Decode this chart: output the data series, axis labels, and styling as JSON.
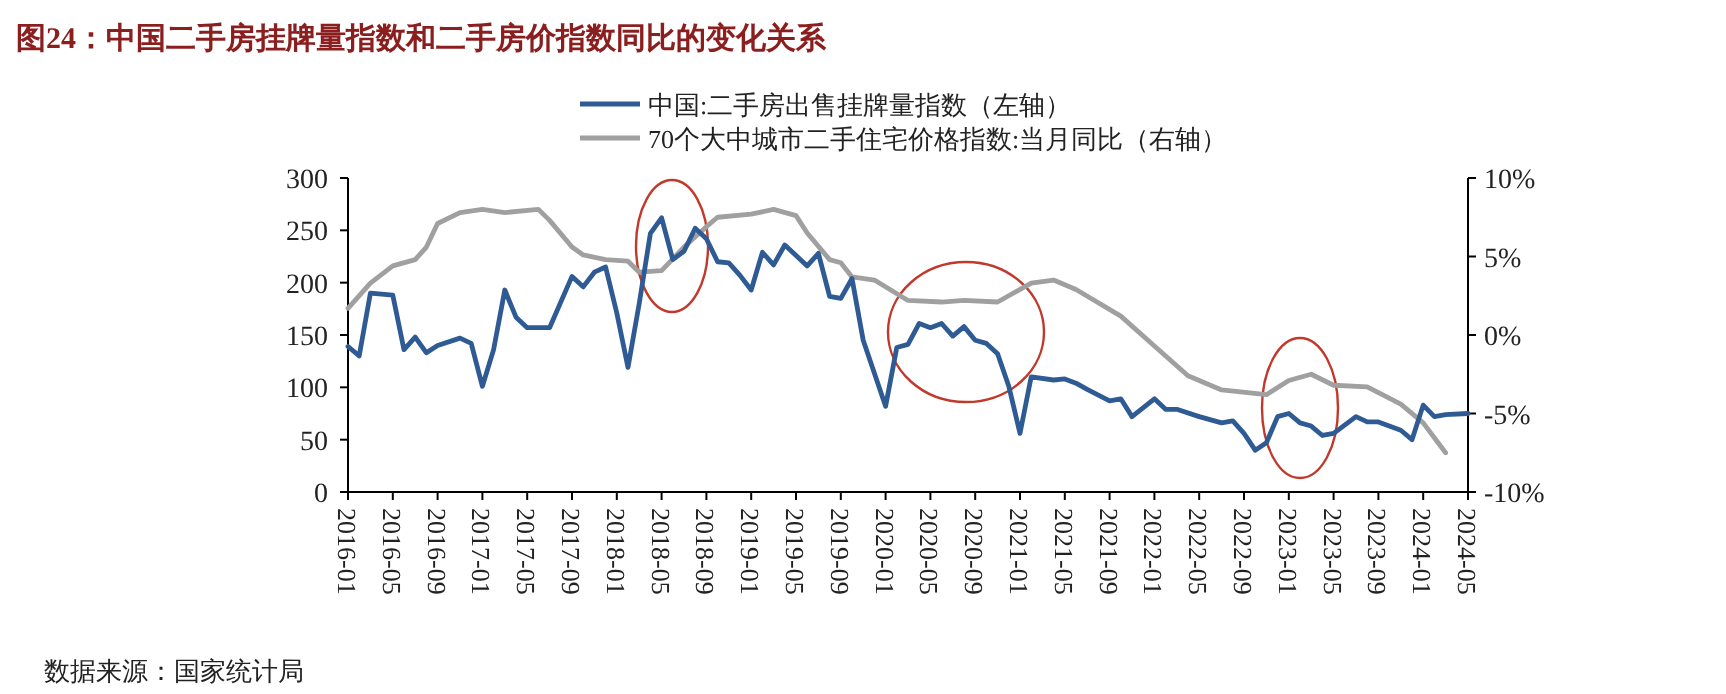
{
  "chart_data": {
    "type": "line",
    "title": "图24：中国二手房挂牌量指数和二手房价指数同比的变化关系",
    "xlim": [
      "2016-01",
      "2024-05"
    ],
    "xticks": [
      "2016-01",
      "2016-05",
      "2016-09",
      "2017-01",
      "2017-05",
      "2017-09",
      "2018-01",
      "2018-05",
      "2018-09",
      "2019-01",
      "2019-05",
      "2019-09",
      "2020-01",
      "2020-05",
      "2020-09",
      "2021-01",
      "2021-05",
      "2021-09",
      "2022-01",
      "2022-05",
      "2022-09",
      "2023-01",
      "2023-05",
      "2023-09",
      "2024-01",
      "2024-05"
    ],
    "ylim": [
      0,
      300
    ],
    "yticks": [
      0,
      50,
      100,
      150,
      200,
      250,
      300
    ],
    "y2lim": [
      -10,
      10
    ],
    "y2ticks": [
      {
        "value": -10,
        "label": "-10%"
      },
      {
        "value": -5,
        "label": "-5%"
      },
      {
        "value": 0,
        "label": "0%"
      },
      {
        "value": 5,
        "label": "5%"
      },
      {
        "value": 10,
        "label": "10%"
      }
    ],
    "legend": "top",
    "grid": false,
    "series": [
      {
        "name": "中国:二手房出售挂牌量指数（左轴）",
        "color": "#2f5b95",
        "x": [
          "2016-01",
          "2016-02",
          "2016-03",
          "2016-05",
          "2016-06",
          "2016-07",
          "2016-08",
          "2016-09",
          "2016-11",
          "2016-12",
          "2017-01",
          "2017-02",
          "2017-03",
          "2017-04",
          "2017-05",
          "2017-07",
          "2017-09",
          "2017-10",
          "2017-11",
          "2017-12",
          "2018-01",
          "2018-02",
          "2018-03",
          "2018-04",
          "2018-05",
          "2018-06",
          "2018-07",
          "2018-08",
          "2018-09",
          "2018-10",
          "2018-11",
          "2018-12",
          "2019-01",
          "2019-02",
          "2019-03",
          "2019-04",
          "2019-06",
          "2019-07",
          "2019-08",
          "2019-09",
          "2019-10",
          "2019-11",
          "2020-01",
          "2020-02",
          "2020-03",
          "2020-04",
          "2020-05",
          "2020-06",
          "2020-07",
          "2020-08",
          "2020-09",
          "2020-10",
          "2020-11",
          "2020-12",
          "2021-01",
          "2021-02",
          "2021-04",
          "2021-05",
          "2021-06",
          "2021-07",
          "2021-09",
          "2021-10",
          "2021-11",
          "2022-01",
          "2022-02",
          "2022-03",
          "2022-05",
          "2022-07",
          "2022-08",
          "2022-09",
          "2022-10",
          "2022-11",
          "2022-12",
          "2023-01",
          "2023-02",
          "2023-03",
          "2023-04",
          "2023-05",
          "2023-07",
          "2023-08",
          "2023-09",
          "2023-11",
          "2023-12",
          "2024-01",
          "2024-02",
          "2024-03",
          "2024-05"
        ],
        "values": [
          139,
          130,
          190,
          188,
          136,
          148,
          133,
          140,
          147,
          142,
          101,
          136,
          193,
          167,
          157,
          157,
          206,
          196,
          210,
          215,
          171,
          119,
          180,
          247,
          262,
          222,
          230,
          252,
          242,
          220,
          219,
          207,
          193,
          229,
          217,
          236,
          216,
          228,
          187,
          185,
          204,
          145,
          82,
          138,
          141,
          161,
          157,
          161,
          149,
          158,
          145,
          142,
          132,
          101,
          56,
          110,
          107,
          108,
          104,
          98,
          87,
          89,
          72,
          89,
          79,
          79,
          72,
          66,
          68,
          56,
          40,
          47,
          72,
          75,
          66,
          63,
          54,
          56,
          72,
          67,
          67,
          59,
          50,
          83,
          72,
          74,
          75
        ]
      },
      {
        "name": "70个大中城市二手住宅价格指数:当月同比（右轴）",
        "color": "#a0a0a0",
        "axis": "y2",
        "x": [
          "2016-01",
          "2016-03",
          "2016-05",
          "2016-07",
          "2016-08",
          "2016-09",
          "2016-11",
          "2017-01",
          "2017-03",
          "2017-06",
          "2017-07",
          "2017-09",
          "2017-10",
          "2017-12",
          "2018-02",
          "2018-03",
          "2018-05",
          "2018-07",
          "2018-09",
          "2018-10",
          "2019-01",
          "2019-03",
          "2019-05",
          "2019-06",
          "2019-08",
          "2019-09",
          "2019-10",
          "2019-12",
          "2020-03",
          "2020-06",
          "2020-08",
          "2020-11",
          "2021-02",
          "2021-04",
          "2021-06",
          "2021-10",
          "2022-01",
          "2022-04",
          "2022-07",
          "2022-11",
          "2023-01",
          "2023-03",
          "2023-05",
          "2023-08",
          "2023-11",
          "2024-01",
          "2024-03"
        ],
        "values": [
          1.7,
          3.3,
          4.4,
          4.8,
          5.6,
          7.1,
          7.8,
          8.0,
          7.8,
          8.0,
          7.3,
          5.6,
          5.1,
          4.8,
          4.7,
          4.0,
          4.1,
          5.6,
          6.9,
          7.5,
          7.7,
          8.0,
          7.6,
          6.5,
          4.8,
          4.6,
          3.7,
          3.5,
          2.2,
          2.1,
          2.2,
          2.1,
          3.3,
          3.5,
          2.9,
          1.2,
          -0.7,
          -2.6,
          -3.5,
          -3.8,
          -2.9,
          -2.5,
          -3.2,
          -3.3,
          -4.4,
          -5.6,
          -7.5
        ]
      }
    ],
    "annotations": [
      "数据来源：国家统计局"
    ]
  }
}
